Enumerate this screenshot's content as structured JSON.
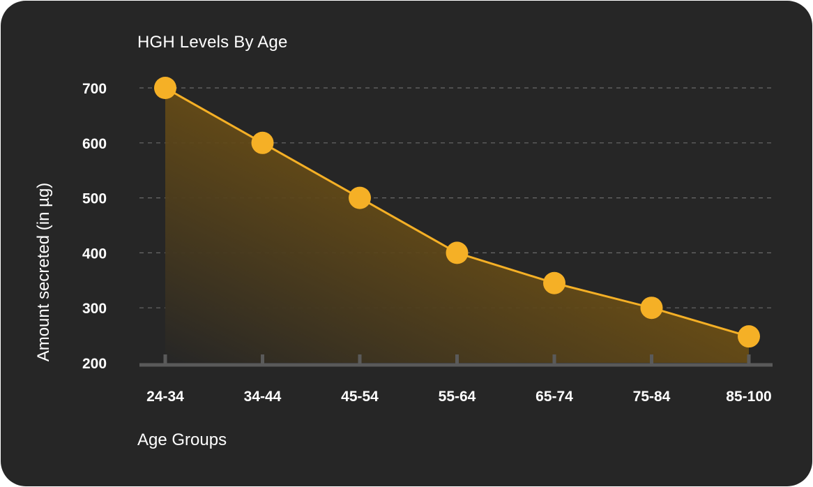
{
  "chart_data": {
    "type": "area",
    "title": "HGH Levels By Age",
    "xlabel": "Age Groups",
    "ylabel": "Amount secreted (in µg)",
    "categories": [
      "24-34",
      "34-44",
      "45-54",
      "55-64",
      "65-74",
      "75-84",
      "85-100"
    ],
    "series": [
      {
        "values": [
          700,
          600,
          500,
          400,
          345,
          300,
          248
        ]
      }
    ],
    "yticks": [
      "200",
      "300",
      "400",
      "500",
      "600",
      "700"
    ],
    "ylim": [
      200,
      700
    ],
    "grid": "horizontal dashed",
    "colors": {
      "line": "#f5b026",
      "marker": "#f5b026",
      "fill_top": "#7a5a16",
      "background": "#262626",
      "grid": "#6a6a6a",
      "axis": "#5a5a5a"
    }
  }
}
